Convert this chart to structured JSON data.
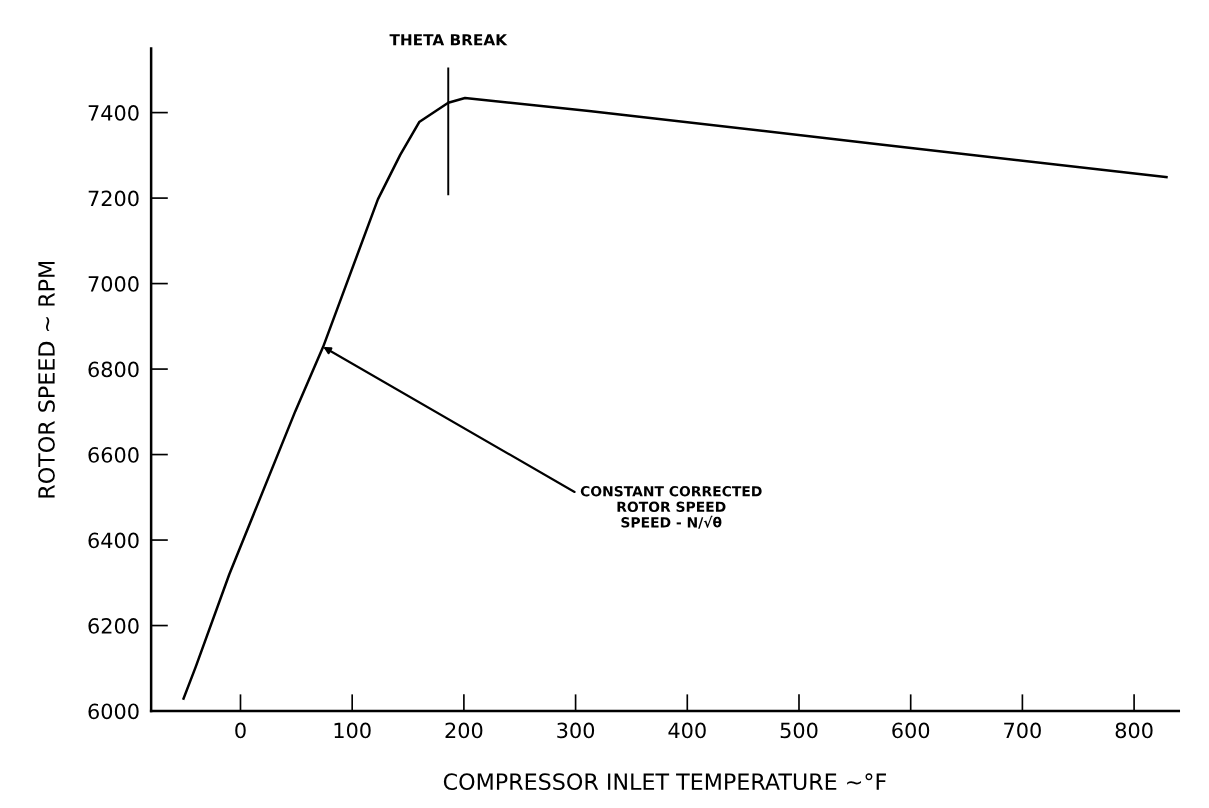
{
  "chart_data": {
    "type": "line",
    "xlabel": "COMPRESSOR INLET TEMPERATURE ~°F",
    "ylabel": "ROTOR SPEED ~ RPM",
    "series": [
      {
        "color": "#000000",
        "x": [
          -51,
          -40,
          -10,
          49,
          74,
          123,
          143,
          160,
          186,
          201,
          312,
          571,
          829
        ],
        "values": [
          6029,
          6104,
          6320,
          6701,
          6852,
          7197,
          7301,
          7378,
          7423,
          7434,
          7404,
          7326,
          7249
        ]
      }
    ],
    "xlim": [
      -80,
      840
    ],
    "ylim": [
      6000,
      7550
    ],
    "xticks": [
      0,
      100,
      200,
      300,
      400,
      500,
      600,
      700,
      800
    ],
    "yticks": [
      6000,
      6200,
      6400,
      6600,
      6800,
      7000,
      7200,
      7400
    ],
    "ref_lines": [
      {
        "axis": "x",
        "value": 186,
        "label": "THETA BREAK",
        "color": "#000000"
      }
    ],
    "annotations": [
      {
        "text": "CONSTANT CORRECTED\nROTOR SPEED\nSPEED - N/√θ",
        "x": 74,
        "y": 6852
      }
    ],
    "grid": false,
    "legend": false,
    "marker": "none",
    "line_style": "solid"
  }
}
